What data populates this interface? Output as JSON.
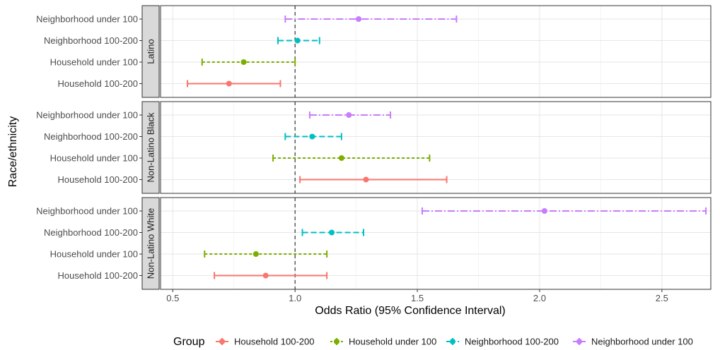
{
  "chart_data": {
    "type": "forest",
    "xlabel": "Odds Ratio (95% Confidence Interval)",
    "ylabel": "Race/ethnicity",
    "xlim": [
      0.45,
      2.7
    ],
    "xticks": [
      0.5,
      1.0,
      1.5,
      2.0,
      2.5
    ],
    "xtick_labels": [
      "0.5",
      "1.0",
      "1.5",
      "2.0",
      "2.5"
    ],
    "reference_line": 1.0,
    "categories": [
      "Neighborhood under 100",
      "Neighborhood 100-200",
      "Household under 100",
      "Household 100-200"
    ],
    "legend": {
      "title": "Group",
      "position": "bottom",
      "items": [
        {
          "label": "Household 100-200",
          "color": "#F8766D"
        },
        {
          "label": "Household under 100",
          "color": "#7CAE00"
        },
        {
          "label": "Neighborhood 100-200",
          "color": "#00BFC4"
        },
        {
          "label": "Neighborhood under 100",
          "color": "#C77CFF"
        }
      ]
    },
    "panels": [
      {
        "strip": "Latino",
        "rows": [
          {
            "group": "Neighborhood under 100",
            "or": 1.26,
            "lo": 0.96,
            "hi": 1.66
          },
          {
            "group": "Neighborhood 100-200",
            "or": 1.01,
            "lo": 0.93,
            "hi": 1.1
          },
          {
            "group": "Household under 100",
            "or": 0.79,
            "lo": 0.62,
            "hi": 1.0
          },
          {
            "group": "Household 100-200",
            "or": 0.73,
            "lo": 0.56,
            "hi": 0.94
          }
        ]
      },
      {
        "strip": "Non-Latino Black",
        "rows": [
          {
            "group": "Neighborhood under 100",
            "or": 1.22,
            "lo": 1.06,
            "hi": 1.39
          },
          {
            "group": "Neighborhood 100-200",
            "or": 1.07,
            "lo": 0.96,
            "hi": 1.19
          },
          {
            "group": "Household under 100",
            "or": 1.19,
            "lo": 0.91,
            "hi": 1.55
          },
          {
            "group": "Household 100-200",
            "or": 1.29,
            "lo": 1.02,
            "hi": 1.62
          }
        ]
      },
      {
        "strip": "Non-Latino White",
        "rows": [
          {
            "group": "Neighborhood under 100",
            "or": 2.02,
            "lo": 1.52,
            "hi": 2.68
          },
          {
            "group": "Neighborhood 100-200",
            "or": 1.15,
            "lo": 1.03,
            "hi": 1.28
          },
          {
            "group": "Household under 100",
            "or": 0.84,
            "lo": 0.63,
            "hi": 1.13
          },
          {
            "group": "Household 100-200",
            "or": 0.88,
            "lo": 0.67,
            "hi": 1.13
          }
        ]
      }
    ]
  }
}
